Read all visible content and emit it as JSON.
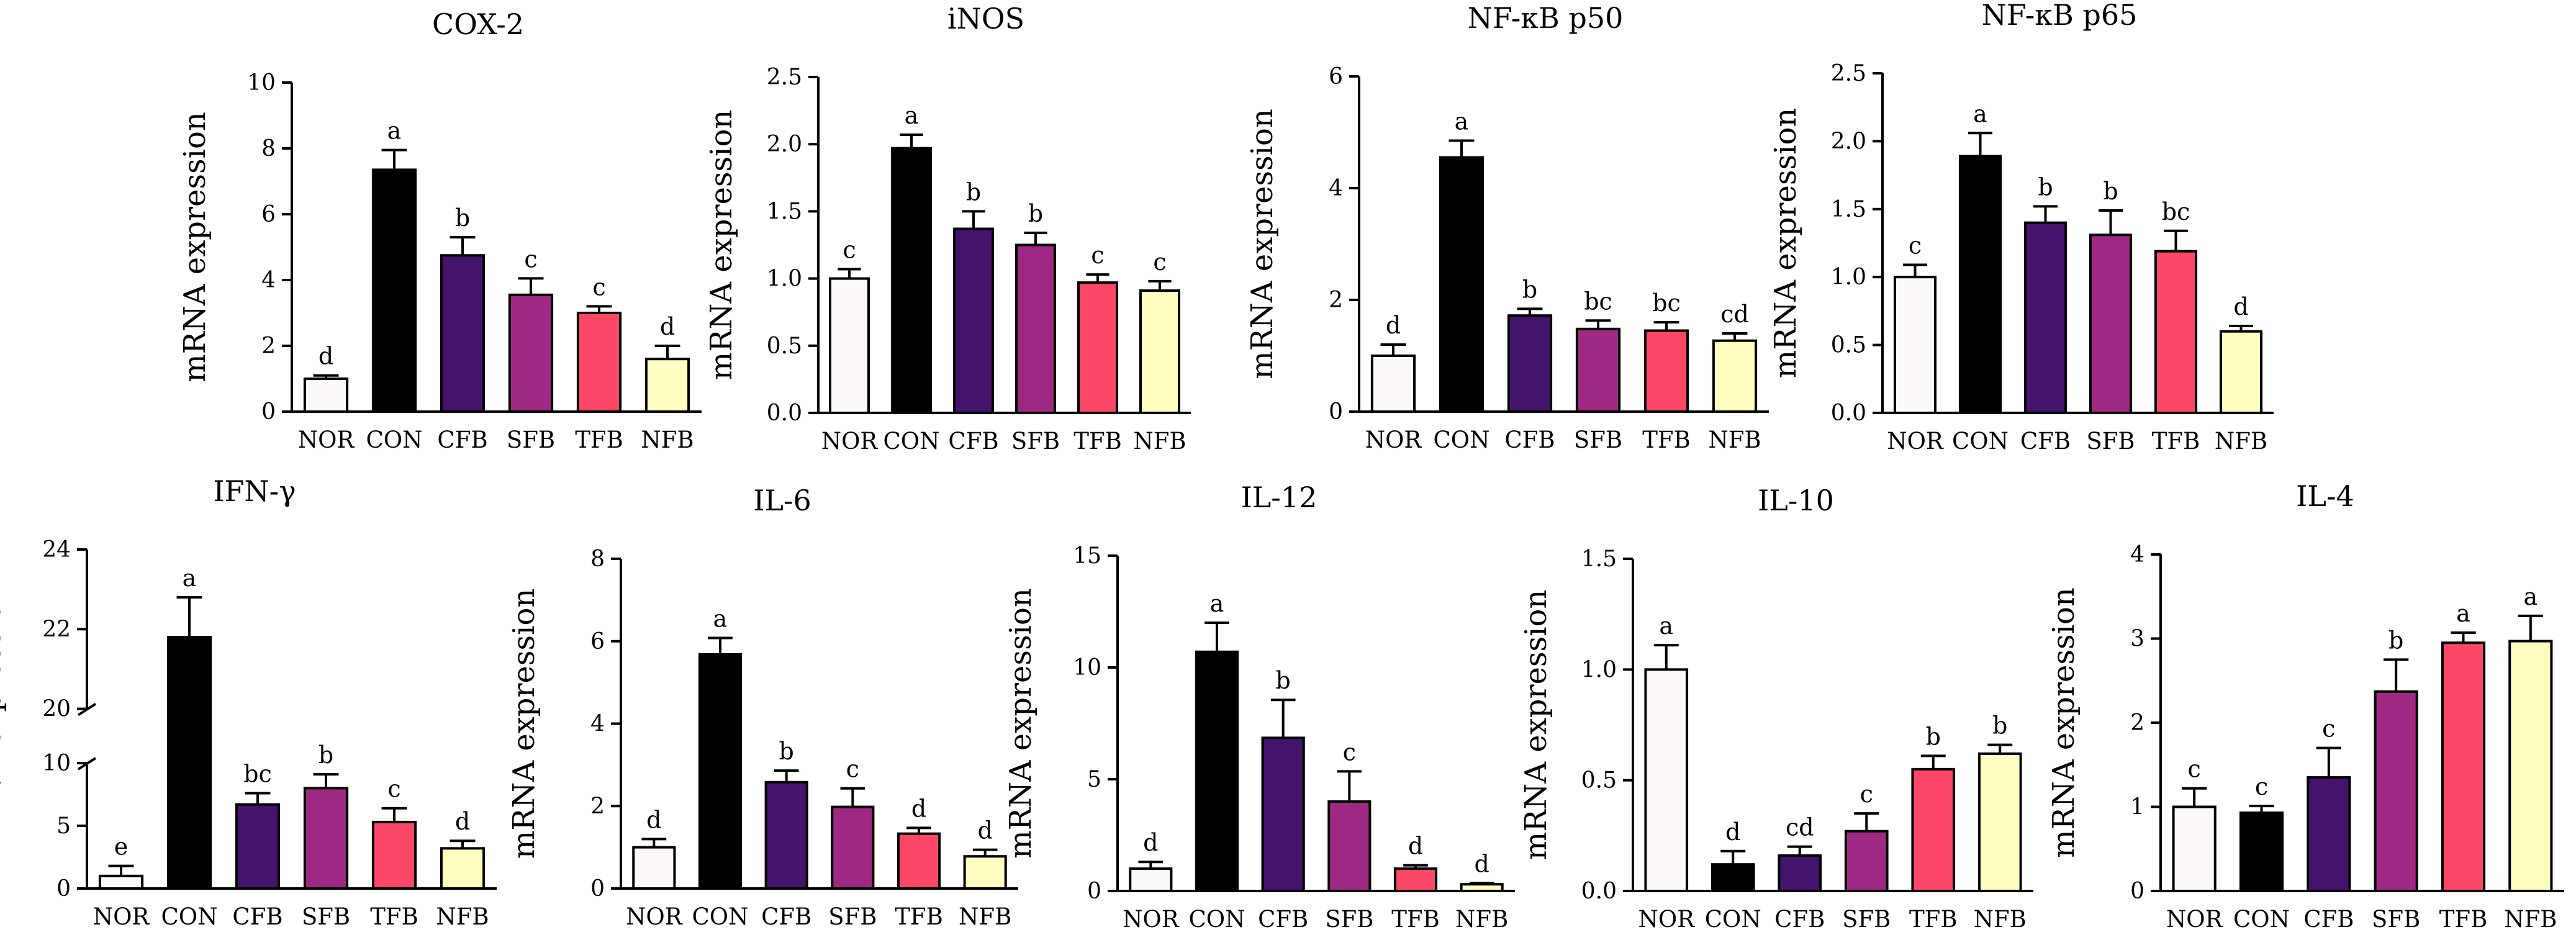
{
  "figure": {
    "ylabel": "mRNA expression",
    "colors": {
      "NOR": "#fdf8fb",
      "CON": "#000000",
      "CFB": "#44136b",
      "SFB": "#9e2982",
      "TFB": "#fd4766",
      "NFB": "#fefec1"
    }
  },
  "chart_data": [
    {
      "type": "bar",
      "title": "COX-2",
      "ylabel": "mRNA expression",
      "categories": [
        "NOR",
        "CON",
        "CFB",
        "SFB",
        "TFB",
        "NFB"
      ],
      "values": [
        1.0,
        7.35,
        4.75,
        3.55,
        3.0,
        1.6
      ],
      "errors": [
        0.1,
        0.6,
        0.55,
        0.5,
        0.2,
        0.4
      ],
      "letters": [
        "d",
        "a",
        "b",
        "c",
        "c",
        "d"
      ],
      "ylim": [
        0,
        10
      ],
      "yticks": [
        "0",
        "2",
        "4",
        "6",
        "8",
        "10"
      ]
    },
    {
      "type": "bar",
      "title": "iNOS",
      "ylabel": "mRNA expression",
      "categories": [
        "NOR",
        "CON",
        "CFB",
        "SFB",
        "TFB",
        "NFB"
      ],
      "values": [
        1.0,
        1.97,
        1.37,
        1.25,
        0.97,
        0.91
      ],
      "errors": [
        0.07,
        0.1,
        0.13,
        0.09,
        0.06,
        0.07
      ],
      "letters": [
        "c",
        "a",
        "b",
        "b",
        "c",
        "c"
      ],
      "ylim": [
        0,
        2.5
      ],
      "yticks": [
        "0.0",
        "0.5",
        "1.0",
        "1.5",
        "2.0",
        "2.5"
      ]
    },
    {
      "type": "bar",
      "title": "NF-κB  p50",
      "ylabel": "mRNA expression",
      "categories": [
        "NOR",
        "CON",
        "CFB",
        "SFB",
        "TFB",
        "NFB"
      ],
      "values": [
        1.0,
        4.55,
        1.72,
        1.48,
        1.45,
        1.27
      ],
      "errors": [
        0.2,
        0.3,
        0.12,
        0.15,
        0.15,
        0.13
      ],
      "letters": [
        "d",
        "a",
        "b",
        "bc",
        "bc",
        "cd"
      ],
      "ylim": [
        0,
        6
      ],
      "yticks": [
        "0",
        "2",
        "4",
        "6"
      ]
    },
    {
      "type": "bar",
      "title": "NF-κB  p65",
      "ylabel": "mRNA expression",
      "categories": [
        "NOR",
        "CON",
        "CFB",
        "SFB",
        "TFB",
        "NFB"
      ],
      "values": [
        1.0,
        1.89,
        1.4,
        1.31,
        1.19,
        0.6
      ],
      "errors": [
        0.09,
        0.17,
        0.12,
        0.18,
        0.15,
        0.04
      ],
      "letters": [
        "c",
        "a",
        "b",
        "b",
        "bc",
        "d"
      ],
      "ylim": [
        0,
        2.5
      ],
      "yticks": [
        "0.0",
        "0.5",
        "1.0",
        "1.5",
        "2.0",
        "2.5"
      ]
    },
    {
      "type": "bar",
      "title": "IFN-γ",
      "ylabel": "mRNA expression",
      "categories": [
        "NOR",
        "CON",
        "CFB",
        "SFB",
        "TFB",
        "NFB"
      ],
      "values": [
        1.0,
        21.8,
        6.7,
        8.0,
        5.3,
        3.2
      ],
      "errors": [
        0.8,
        1.0,
        0.9,
        1.1,
        1.1,
        0.6
      ],
      "letters": [
        "e",
        "a",
        "bc",
        "b",
        "c",
        "d"
      ],
      "ylim": [
        0,
        24
      ],
      "axis_break": [
        10,
        20
      ],
      "yticks": [
        "0",
        "5",
        "10",
        "20",
        "22",
        "24"
      ]
    },
    {
      "type": "bar",
      "title": "IL-6",
      "ylabel": "mRNA expression",
      "categories": [
        "NOR",
        "CON",
        "CFB",
        "SFB",
        "TFB",
        "NFB"
      ],
      "values": [
        1.0,
        5.68,
        2.58,
        1.98,
        1.33,
        0.78
      ],
      "errors": [
        0.2,
        0.4,
        0.28,
        0.45,
        0.14,
        0.16
      ],
      "letters": [
        "d",
        "a",
        "b",
        "c",
        "d",
        "d"
      ],
      "ylim": [
        0,
        8
      ],
      "yticks": [
        "0",
        "2",
        "4",
        "6",
        "8"
      ]
    },
    {
      "type": "bar",
      "title": "IL-12",
      "ylabel": "mRNA expression",
      "categories": [
        "NOR",
        "CON",
        "CFB",
        "SFB",
        "TFB",
        "NFB"
      ],
      "values": [
        1.0,
        10.7,
        6.85,
        4.0,
        1.0,
        0.3
      ],
      "errors": [
        0.3,
        1.3,
        1.7,
        1.35,
        0.15,
        0.05
      ],
      "letters": [
        "d",
        "a",
        "b",
        "c",
        "d",
        "d"
      ],
      "ylim": [
        0,
        15
      ],
      "yticks": [
        "0",
        "5",
        "10",
        "15"
      ]
    },
    {
      "type": "bar",
      "title": "IL-10",
      "ylabel": "mRNA expression",
      "categories": [
        "NOR",
        "CON",
        "CFB",
        "SFB",
        "TFB",
        "NFB"
      ],
      "values": [
        1.0,
        0.12,
        0.16,
        0.27,
        0.55,
        0.62
      ],
      "errors": [
        0.11,
        0.06,
        0.04,
        0.08,
        0.06,
        0.04
      ],
      "letters": [
        "a",
        "d",
        "cd",
        "c",
        "b",
        "b"
      ],
      "ylim": [
        0,
        1.5
      ],
      "yticks": [
        "0.0",
        "0.5",
        "1.0",
        "1.5"
      ]
    },
    {
      "type": "bar",
      "title": "IL-4",
      "ylabel": "mRNA expression",
      "categories": [
        "NOR",
        "CON",
        "CFB",
        "SFB",
        "TFB",
        "NFB"
      ],
      "values": [
        1.0,
        0.93,
        1.35,
        2.37,
        2.95,
        2.97
      ],
      "errors": [
        0.22,
        0.08,
        0.35,
        0.38,
        0.12,
        0.3
      ],
      "letters": [
        "c",
        "c",
        "c",
        "b",
        "a",
        "a"
      ],
      "ylim": [
        0,
        4
      ],
      "yticks": [
        "0",
        "1",
        "2",
        "3",
        "4"
      ]
    }
  ]
}
